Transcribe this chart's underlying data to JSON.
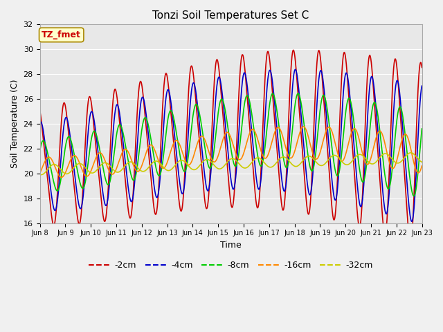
{
  "title": "Tonzi Soil Temperatures Set C",
  "xlabel": "Time",
  "ylabel": "Soil Temperature (C)",
  "ylim": [
    16,
    32
  ],
  "yticks": [
    16,
    18,
    20,
    22,
    24,
    26,
    28,
    30,
    32
  ],
  "xtick_labels": [
    "Jun 8",
    "Jun 9",
    "Jun 10",
    "Jun 11",
    "Jun 12",
    "Jun 13",
    "Jun 14",
    "Jun 15",
    "Jun 16",
    "Jun 17",
    "Jun 18",
    "Jun 19",
    "Jun 20",
    "Jun 21",
    "Jun 22",
    "Jun 23"
  ],
  "annotation_text": "TZ_fmet",
  "annotation_color": "#cc0000",
  "annotation_bg": "#ffffcc",
  "annotation_border": "#aa8800",
  "colors": {
    "-2cm": "#cc0000",
    "-4cm": "#0000cc",
    "-8cm": "#00cc00",
    "-16cm": "#ff8800",
    "-32cm": "#cccc00"
  },
  "legend_labels": [
    "-2cm",
    "-4cm",
    "-8cm",
    "-16cm",
    "-32cm"
  ],
  "fig_bg": "#f0f0f0",
  "plot_bg": "#e8e8e8",
  "grid_color": "#ffffff"
}
